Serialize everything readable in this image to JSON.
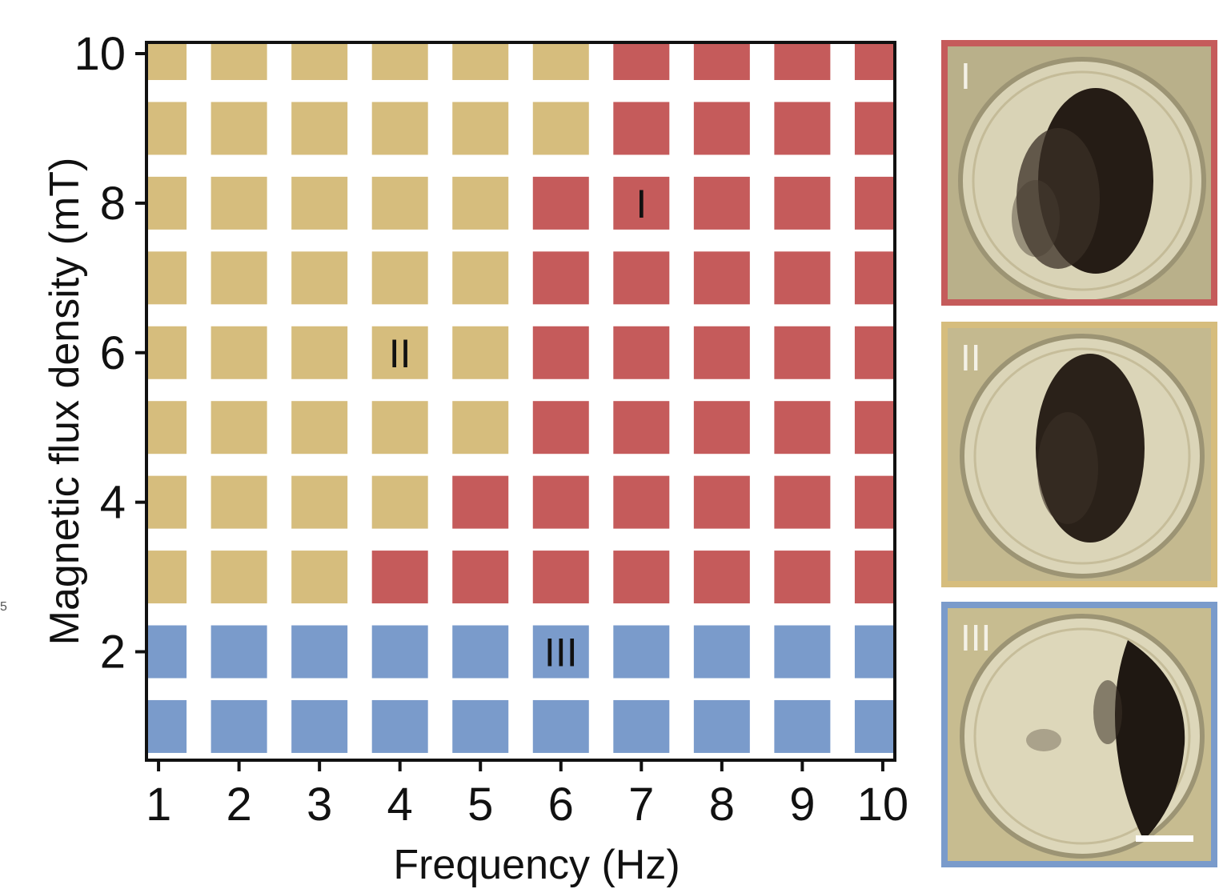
{
  "chart_data": {
    "type": "heatmap",
    "xlabel": "Frequency (Hz)",
    "ylabel": "Magnetic flux density (mT)",
    "x": [
      1,
      2,
      3,
      4,
      5,
      6,
      7,
      8,
      9,
      10
    ],
    "y": [
      1,
      2,
      3,
      4,
      5,
      6,
      7,
      8,
      9,
      10
    ],
    "xlim": [
      0.85,
      10.15
    ],
    "ylim": [
      0.55,
      10.15
    ],
    "x_ticks": [
      "1",
      "2",
      "3",
      "4",
      "5",
      "6",
      "7",
      "8",
      "9",
      "10"
    ],
    "y_ticks": [
      "2",
      "4",
      "6",
      "8",
      "10"
    ],
    "y_tick_values": [
      2,
      4,
      6,
      8,
      10
    ],
    "regions": {
      "I": {
        "color": "#c55b5b"
      },
      "II": {
        "color": "#d6bd7d"
      },
      "III": {
        "color": "#7a9bcb"
      }
    },
    "grid_rows": [
      {
        "y": 10,
        "cells": [
          "II",
          "II",
          "II",
          "II",
          "II",
          "II",
          "I",
          "I",
          "I",
          "I"
        ]
      },
      {
        "y": 9,
        "cells": [
          "II",
          "II",
          "II",
          "II",
          "II",
          "II",
          "I",
          "I",
          "I",
          "I"
        ]
      },
      {
        "y": 8,
        "cells": [
          "II",
          "II",
          "II",
          "II",
          "II",
          "I",
          "I",
          "I",
          "I",
          "I"
        ]
      },
      {
        "y": 7,
        "cells": [
          "II",
          "II",
          "II",
          "II",
          "II",
          "I",
          "I",
          "I",
          "I",
          "I"
        ]
      },
      {
        "y": 6,
        "cells": [
          "II",
          "II",
          "II",
          "II",
          "II",
          "I",
          "I",
          "I",
          "I",
          "I"
        ]
      },
      {
        "y": 5,
        "cells": [
          "II",
          "II",
          "II",
          "II",
          "II",
          "I",
          "I",
          "I",
          "I",
          "I"
        ]
      },
      {
        "y": 4,
        "cells": [
          "II",
          "II",
          "II",
          "II",
          "I",
          "I",
          "I",
          "I",
          "I",
          "I"
        ]
      },
      {
        "y": 3,
        "cells": [
          "II",
          "II",
          "II",
          "I",
          "I",
          "I",
          "I",
          "I",
          "I",
          "I"
        ]
      },
      {
        "y": 2,
        "cells": [
          "III",
          "III",
          "III",
          "III",
          "III",
          "III",
          "III",
          "III",
          "III",
          "III"
        ]
      },
      {
        "y": 1,
        "cells": [
          "III",
          "III",
          "III",
          "III",
          "III",
          "III",
          "III",
          "III",
          "III",
          "III"
        ]
      }
    ],
    "annotations": [
      {
        "text": "I",
        "x": 7,
        "y": 8
      },
      {
        "text": "II",
        "x": 4,
        "y": 6
      },
      {
        "text": "III",
        "x": 6,
        "y": 2
      }
    ]
  },
  "panels": [
    {
      "label": "I",
      "region": "I",
      "border_color": "#c55b5b"
    },
    {
      "label": "II",
      "region": "II",
      "border_color": "#d6bd7d"
    },
    {
      "label": "III",
      "region": "III",
      "border_color": "#7a9bcb"
    }
  ],
  "edge_mark": "5"
}
